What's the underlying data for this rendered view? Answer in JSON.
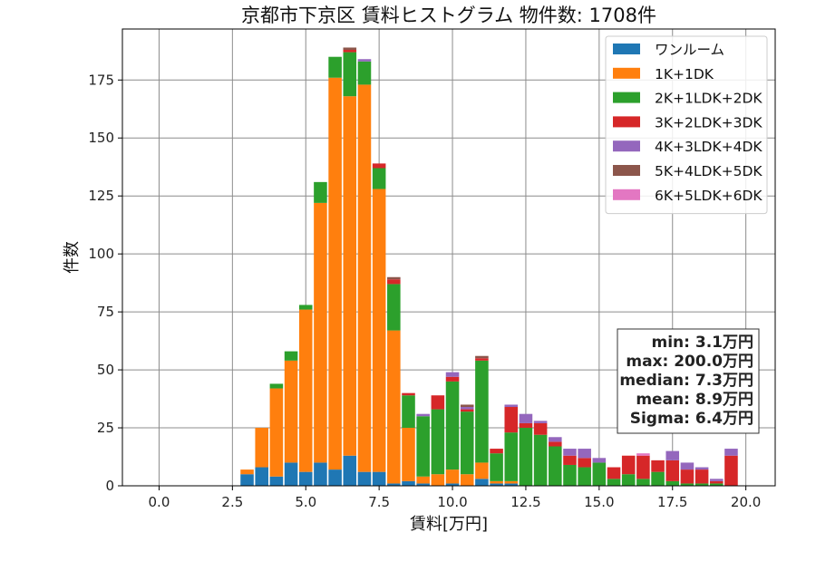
{
  "chart_data": {
    "type": "bar",
    "stacked": true,
    "title": "京都市下京区 賃料ヒストグラム 物件数: 1708件",
    "xlabel": "賃料[万円]",
    "ylabel": "件数",
    "xlim": [
      -1.25,
      21.0
    ],
    "ylim": [
      0,
      197
    ],
    "xticks": [
      0.0,
      2.5,
      5.0,
      7.5,
      10.0,
      12.5,
      15.0,
      17.5,
      20.0
    ],
    "xtick_labels": [
      "0.0",
      "2.5",
      "5.0",
      "7.5",
      "10.0",
      "12.5",
      "15.0",
      "17.5",
      "20.0"
    ],
    "yticks": [
      0,
      25,
      50,
      75,
      100,
      125,
      150,
      175
    ],
    "ytick_labels": [
      "0",
      "25",
      "50",
      "75",
      "100",
      "125",
      "150",
      "175"
    ],
    "grid": true,
    "legend_position": "top-right",
    "bin_width": 0.5,
    "x": [
      3.0,
      3.5,
      4.0,
      4.5,
      5.0,
      5.5,
      6.0,
      6.5,
      7.0,
      7.5,
      8.0,
      8.5,
      9.0,
      9.5,
      10.0,
      10.5,
      11.0,
      11.5,
      12.0,
      12.5,
      13.0,
      13.5,
      14.0,
      14.5,
      15.0,
      15.5,
      16.0,
      16.5,
      17.0,
      17.5,
      18.0,
      18.5,
      19.0,
      19.5
    ],
    "series": [
      {
        "name": "ワンルーム",
        "color": "#1f77b4",
        "values": [
          5,
          8,
          4,
          10,
          6,
          10,
          7,
          13,
          6,
          6,
          1,
          2,
          1,
          0,
          1,
          0,
          3,
          1,
          1,
          0,
          0,
          0,
          0,
          0,
          0,
          0,
          0,
          0,
          0,
          0,
          0,
          0,
          0,
          0
        ]
      },
      {
        "name": "1K+1DK",
        "color": "#ff7f0e",
        "values": [
          2,
          17,
          38,
          44,
          70,
          112,
          169,
          155,
          167,
          122,
          66,
          23,
          3,
          5,
          6,
          5,
          7,
          1,
          1,
          0,
          0,
          0,
          0,
          0,
          0,
          0,
          0,
          0,
          0,
          0,
          0,
          0,
          0,
          0
        ]
      },
      {
        "name": "2K+1LDK+2DK",
        "color": "#2ca02c",
        "values": [
          0,
          0,
          2,
          4,
          2,
          9,
          9,
          19,
          10,
          9,
          20,
          14,
          26,
          28,
          38,
          27,
          44,
          12,
          21,
          25,
          22,
          17,
          9,
          8,
          10,
          3,
          5,
          3,
          6,
          2,
          1,
          1,
          1,
          0
        ]
      },
      {
        "name": "3K+2LDK+3DK",
        "color": "#d62728",
        "values": [
          0,
          0,
          0,
          0,
          0,
          0,
          0,
          1,
          0,
          2,
          2,
          1,
          0,
          6,
          2,
          1,
          1,
          2,
          11,
          2,
          5,
          2,
          4,
          4,
          0,
          5,
          8,
          10,
          5,
          9,
          6,
          6,
          1,
          13
        ]
      },
      {
        "name": "4K+3LDK+4DK",
        "color": "#9467bd",
        "values": [
          0,
          0,
          0,
          0,
          0,
          0,
          0,
          0,
          1,
          0,
          0,
          0,
          1,
          0,
          2,
          1,
          0,
          0,
          1,
          4,
          1,
          2,
          3,
          4,
          2,
          0,
          0,
          0,
          0,
          4,
          3,
          1,
          1,
          3
        ]
      },
      {
        "name": "5K+4LDK+5DK",
        "color": "#8c564b",
        "values": [
          0,
          0,
          0,
          0,
          0,
          0,
          0,
          1,
          0,
          0,
          1,
          0,
          0,
          0,
          0,
          1,
          1,
          0,
          0,
          0,
          0,
          0,
          0,
          0,
          0,
          0,
          0,
          0,
          0,
          0,
          0,
          0,
          0,
          0
        ]
      },
      {
        "name": "6K+5LDK+6DK",
        "color": "#e377c2",
        "values": [
          0,
          0,
          0,
          0,
          0,
          0,
          0,
          0,
          0,
          0,
          0,
          0,
          0,
          0,
          0,
          0,
          0,
          0,
          0,
          0,
          0,
          0,
          0,
          0,
          0,
          0,
          0,
          1,
          0,
          0,
          0,
          0,
          0,
          0
        ]
      }
    ],
    "stats_box": [
      "min: 3.1万円",
      "max: 200.0万円",
      "median: 7.3万円",
      "mean: 8.9万円",
      "Sigma: 6.4万円"
    ]
  }
}
